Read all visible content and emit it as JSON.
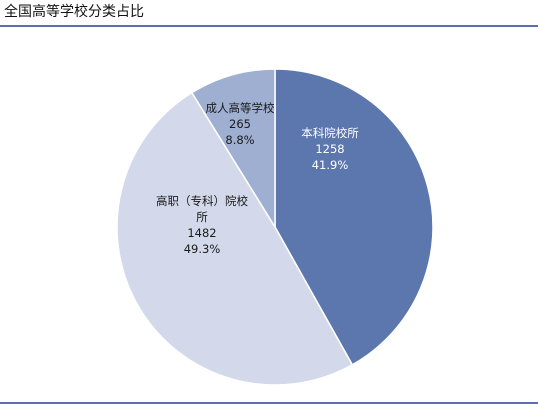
{
  "header": {
    "title": "全国高等学校分类占比"
  },
  "chart_data": {
    "type": "pie",
    "title": "全国高等学校分类占比",
    "slices": [
      {
        "label": "本科院校所",
        "value": 1258,
        "percent": "41.9%",
        "color": "#5b77ad",
        "text_color": "#ffffff",
        "lines": [
          "本科院校所"
        ]
      },
      {
        "label": "高职（专科）院校所",
        "value": 1482,
        "percent": "49.3%",
        "color": "#d3d9ea",
        "text_color": "#1a1a1a",
        "lines": [
          "高职（专科）院校",
          "所"
        ]
      },
      {
        "label": "成人高等学校",
        "value": 265,
        "percent": "8.8%",
        "color": "#9fafd1",
        "text_color": "#1a1a1a",
        "lines": [
          "成人高等学校"
        ]
      }
    ]
  }
}
